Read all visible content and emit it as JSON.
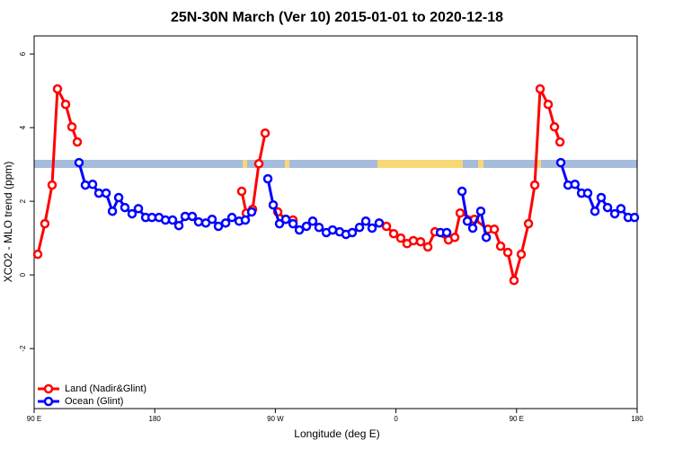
{
  "chart_data": {
    "type": "line",
    "title": "25N-30N March (Ver 10)   2015-01-01 to 2020-12-18",
    "x_label": "Longitude (deg E)",
    "y_label": "XCO2 - MLO trend (ppm)",
    "xlim": [
      90,
      540
    ],
    "xticks": [
      {
        "value": 90,
        "label": "90 E"
      },
      180,
      {
        "value": 270,
        "label": "90 W"
      },
      {
        "value": 360,
        "label": "0"
      },
      {
        "value": 450,
        "label": "90 E"
      },
      {
        "value": 540,
        "label": "180"
      }
    ],
    "ylim": [
      -3.63,
      6.49
    ],
    "yticks": [
      -2,
      0,
      2,
      4,
      6
    ],
    "legend_position": "bottomleft",
    "series": [
      {
        "name": "Land (Nadir&Glint)",
        "color": "#ff0000",
        "x": [
          92.7,
          98,
          103.4,
          107.4,
          113.5,
          118.2,
          122.2,
          null,
          244.9,
          248.3,
          253,
          257.7,
          262.4,
          null,
          271.8,
          277.8,
          283.2,
          null,
          352.9,
          358.3,
          363.6,
          368.3,
          373,
          378.4,
          383.8,
          389.1,
          399.2,
          403.9,
          407.9,
          418.6,
          428.7,
          433.4,
          438.1,
          443.5,
          448.1,
          453.5,
          458.9,
          463.6,
          467.6,
          473.6,
          478.3,
          482.4
        ],
        "values": [
          0.56,
          1.39,
          2.44,
          5.05,
          4.63,
          4.02,
          3.61,
          null,
          2.27,
          1.68,
          1.78,
          3.02,
          3.85,
          null,
          1.71,
          1.51,
          1.49,
          null,
          1.32,
          1.12,
          1.0,
          0.85,
          0.93,
          0.9,
          0.76,
          1.17,
          0.95,
          1.02,
          1.68,
          1.51,
          1.24,
          1.24,
          0.78,
          0.61,
          -0.15,
          0.56,
          1.39,
          2.44,
          5.05,
          4.63,
          4.02,
          3.61
        ]
      },
      {
        "name": "Ocean (Glint)",
        "color": "#0000ff",
        "x": [
          123.5,
          128.2,
          133.6,
          138.3,
          143.7,
          148.4,
          153.1,
          157.7,
          163.1,
          167.8,
          173.2,
          177.9,
          183.2,
          188,
          193.3,
          198,
          202.7,
          208,
          212.7,
          218.1,
          222.8,
          227.5,
          232.9,
          237.6,
          243,
          247.6,
          252.3,
          null,
          264.4,
          268.4,
          273.1,
          277.8,
          283.2,
          287.9,
          293.2,
          297.9,
          302.6,
          308,
          312.7,
          318,
          322.7,
          327.4,
          332.8,
          337.5,
          342.2,
          347.5,
          null,
          393.2,
          397.9,
          null,
          409.3,
          413.3,
          417.3,
          423.3,
          427.4,
          null,
          483,
          488.4,
          493.6,
          498.5,
          503.1,
          508.5,
          513.2,
          517.9,
          523.3,
          527.9,
          533.3,
          538
        ],
        "values": [
          3.05,
          2.44,
          2.46,
          2.22,
          2.22,
          1.73,
          2.1,
          1.83,
          1.66,
          1.8,
          1.56,
          1.56,
          1.56,
          1.49,
          1.49,
          1.34,
          1.59,
          1.59,
          1.44,
          1.41,
          1.51,
          1.32,
          1.41,
          1.56,
          1.46,
          1.49,
          1.71,
          null,
          2.61,
          1.9,
          1.39,
          1.51,
          1.39,
          1.22,
          1.32,
          1.46,
          1.29,
          1.15,
          1.22,
          1.17,
          1.1,
          1.15,
          1.29,
          1.46,
          1.27,
          1.41,
          null,
          1.15,
          1.15,
          null,
          2.27,
          1.46,
          1.27,
          1.73,
          1.02,
          null,
          3.05,
          2.44,
          2.46,
          2.22,
          2.22,
          1.73,
          2.1,
          1.83,
          1.66,
          1.8,
          1.56,
          1.56
        ]
      }
    ]
  }
}
